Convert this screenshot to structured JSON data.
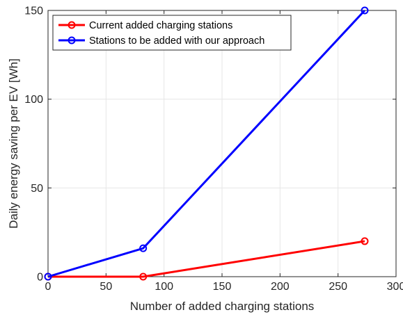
{
  "chart_data": {
    "type": "line",
    "title": "",
    "xlabel": "Number of added charging stations",
    "ylabel": "Daily energy saving per EV  [Wh]",
    "xlim": [
      0,
      300
    ],
    "ylim": [
      0,
      150
    ],
    "xticks": [
      0,
      50,
      100,
      150,
      200,
      250,
      300
    ],
    "yticks": [
      0,
      50,
      100,
      150
    ],
    "xtick_labels": [
      "0",
      "50",
      "100",
      "150",
      "200",
      "250",
      "300"
    ],
    "ytick_labels": [
      "0",
      "50",
      "100",
      "150"
    ],
    "grid": true,
    "legend_position": "top-left",
    "series": [
      {
        "name": "Current added charging stations",
        "color": "#ff0000",
        "marker": "circle",
        "x": [
          0,
          82,
          273
        ],
        "y": [
          0,
          0,
          20
        ]
      },
      {
        "name": "Stations to be added with our approach",
        "color": "#0000ff",
        "marker": "circle",
        "x": [
          0,
          82,
          273
        ],
        "y": [
          0,
          16,
          150
        ]
      }
    ]
  }
}
